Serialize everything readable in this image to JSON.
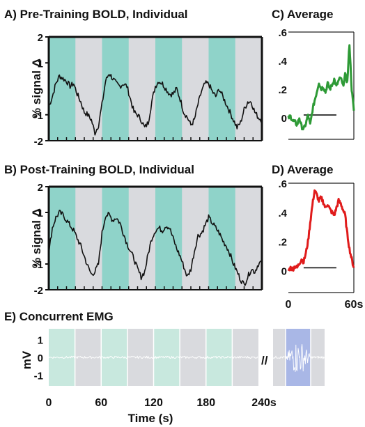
{
  "chart_data": [
    {
      "id": "A",
      "type": "line",
      "title": "A) Pre-Training BOLD, Individual",
      "ylabel": "% signal Δ",
      "ylim": [
        -2,
        2
      ],
      "yticks": [
        "2",
        "1",
        "-1",
        "-2"
      ],
      "ytick_values": [
        2,
        1,
        -1,
        -2
      ],
      "xlim": [
        0,
        240
      ],
      "grid": false,
      "block_colors": {
        "on": "#8fd3c9",
        "off": "#d9dade"
      },
      "blocks_on": [
        [
          0,
          30
        ],
        [
          60,
          90
        ],
        [
          120,
          150
        ],
        [
          180,
          210
        ]
      ],
      "line_color": "#111111",
      "series": [
        {
          "x": [
            0,
            4,
            8,
            12,
            16,
            20,
            24,
            28,
            32,
            36,
            40,
            44,
            48,
            52,
            56,
            60,
            64,
            68,
            72,
            76,
            80,
            84,
            88,
            92,
            96,
            100,
            104,
            108,
            112,
            116,
            120,
            124,
            128,
            132,
            136,
            140,
            144,
            148,
            152,
            156,
            160,
            164,
            168,
            172,
            176,
            180,
            184,
            188,
            192,
            196,
            200,
            204,
            208,
            212,
            216,
            220,
            224,
            228,
            232,
            236,
            240
          ],
          "y": [
            -0.7,
            -0.3,
            0.2,
            0.5,
            0.4,
            0.3,
            0.1,
            0.2,
            -0.2,
            -0.5,
            -0.9,
            -1.0,
            -1.2,
            -1.7,
            -1.4,
            -0.6,
            0.3,
            0.6,
            0.4,
            0.2,
            0.1,
            0.2,
            0.1,
            -0.4,
            -0.9,
            -1.0,
            -1.2,
            -1.5,
            -1.3,
            -0.5,
            0.1,
            0.3,
            0.2,
            0.0,
            -0.2,
            -0.2,
            0.0,
            -0.4,
            -0.9,
            -1.1,
            -1.4,
            -1.2,
            -0.6,
            -0.1,
            0.2,
            0.2,
            -0.1,
            -0.3,
            0.0,
            -0.3,
            -0.6,
            -0.9,
            -1.2,
            -1.5,
            -1.3,
            -0.8,
            -0.5,
            -0.5,
            -0.9,
            -1.1,
            -1.2
          ]
        }
      ]
    },
    {
      "id": "B",
      "type": "line",
      "title": "B) Post-Training BOLD, Individual",
      "ylabel": "% signal Δ",
      "ylim": [
        -2,
        2
      ],
      "yticks": [
        "2",
        "1",
        "-1",
        "-2"
      ],
      "ytick_values": [
        2,
        1,
        -1,
        -2
      ],
      "xlim": [
        0,
        240
      ],
      "grid": false,
      "block_colors": {
        "on": "#8fd3c9",
        "off": "#d9dade"
      },
      "blocks_on": [
        [
          0,
          30
        ],
        [
          60,
          90
        ],
        [
          120,
          150
        ],
        [
          180,
          210
        ]
      ],
      "line_color": "#111111",
      "series": [
        {
          "x": [
            0,
            4,
            8,
            12,
            16,
            20,
            24,
            28,
            32,
            36,
            40,
            44,
            48,
            52,
            56,
            60,
            64,
            68,
            72,
            76,
            80,
            84,
            88,
            92,
            96,
            100,
            104,
            108,
            112,
            116,
            120,
            124,
            128,
            132,
            136,
            140,
            144,
            148,
            152,
            156,
            160,
            164,
            168,
            172,
            176,
            180,
            184,
            188,
            192,
            196,
            200,
            204,
            208,
            212,
            216,
            220,
            224,
            228,
            232,
            236,
            240
          ],
          "y": [
            -0.6,
            0.4,
            0.8,
            1.0,
            0.9,
            0.7,
            0.5,
            0.3,
            0.0,
            -0.3,
            -0.7,
            -1.1,
            -1.4,
            -1.3,
            -1.0,
            0.2,
            0.9,
            0.9,
            0.7,
            0.8,
            0.6,
            0.2,
            -0.2,
            -0.5,
            -0.8,
            -1.2,
            -1.5,
            -1.3,
            -0.6,
            0.0,
            0.3,
            0.4,
            0.3,
            0.5,
            0.4,
            0.0,
            -0.4,
            -0.7,
            -1.1,
            -1.5,
            -1.2,
            -0.5,
            0.1,
            0.2,
            0.5,
            0.8,
            0.6,
            0.4,
            0.2,
            -0.1,
            -0.3,
            -0.6,
            -1.0,
            -1.3,
            -1.6,
            -1.8,
            -1.5,
            -1.2,
            -1.3,
            -1.0,
            -0.9
          ]
        }
      ]
    },
    {
      "id": "C",
      "type": "line",
      "title": "C) Average",
      "ylabel": "",
      "ylim": [
        -0.15,
        0.6
      ],
      "yticks": [
        ".6",
        ".4",
        ".2",
        "0"
      ],
      "ytick_values": [
        0.6,
        0.4,
        0.2,
        0.0
      ],
      "xlim": [
        0,
        60
      ],
      "grid": false,
      "line_color": "#2e9a36",
      "reference_line": {
        "x0": 14,
        "x1": 44,
        "y": 0.02
      },
      "series": [
        {
          "x": [
            0,
            2,
            4,
            6,
            8,
            10,
            12,
            14,
            16,
            18,
            20,
            22,
            24,
            26,
            28,
            30,
            32,
            34,
            36,
            38,
            40,
            42,
            44,
            46,
            48,
            50,
            52,
            54,
            56,
            58,
            60
          ],
          "y": [
            0.0,
            0.01,
            -0.02,
            -0.03,
            -0.05,
            0.0,
            -0.06,
            -0.08,
            -0.04,
            0.02,
            -0.05,
            0.05,
            0.12,
            0.18,
            0.25,
            0.2,
            0.22,
            0.18,
            0.24,
            0.2,
            0.23,
            0.27,
            0.22,
            0.26,
            0.28,
            0.22,
            0.3,
            0.25,
            0.52,
            0.2,
            0.05
          ]
        }
      ]
    },
    {
      "id": "D",
      "type": "line",
      "title": "D) Average",
      "ylabel": "",
      "ylim": [
        -0.15,
        0.6
      ],
      "yticks": [
        ".6",
        ".4",
        ".2",
        "0"
      ],
      "ytick_values": [
        0.6,
        0.4,
        0.2,
        0.0
      ],
      "xlim": [
        0,
        60
      ],
      "xticks": [
        "0",
        "60s"
      ],
      "xtick_values": [
        0,
        60
      ],
      "grid": false,
      "line_color": "#e01b1b",
      "reference_line": {
        "x0": 14,
        "x1": 44,
        "y": 0.02
      },
      "series": [
        {
          "x": [
            0,
            2,
            4,
            6,
            8,
            10,
            12,
            14,
            16,
            18,
            20,
            22,
            24,
            26,
            28,
            30,
            32,
            34,
            36,
            38,
            40,
            42,
            44,
            46,
            48,
            50,
            52,
            54,
            56,
            58,
            60
          ],
          "y": [
            0.0,
            0.02,
            0.01,
            0.03,
            0.02,
            0.05,
            0.08,
            0.06,
            0.12,
            0.2,
            0.33,
            0.45,
            0.55,
            0.52,
            0.48,
            0.5,
            0.47,
            0.43,
            0.46,
            0.42,
            0.4,
            0.38,
            0.43,
            0.48,
            0.46,
            0.42,
            0.38,
            0.25,
            0.15,
            0.08,
            0.02
          ]
        }
      ]
    },
    {
      "id": "E",
      "type": "line",
      "title": "E) Concurrent EMG",
      "ylabel": "mV",
      "ylim": [
        -1.6,
        1.6
      ],
      "yticks": [
        "1",
        "0",
        "-1"
      ],
      "ytick_values": [
        1,
        0,
        -1
      ],
      "xlim": [
        0,
        240
      ],
      "xticks": [
        "0",
        "60",
        "120",
        "180",
        "240s"
      ],
      "xtick_values": [
        0,
        60,
        120,
        180,
        240
      ],
      "xlabel": "Time (s)",
      "grid": false,
      "break_symbol": "//",
      "block_colors": {
        "on": "#c8e8de",
        "off": "#d9dade",
        "burst": "#a9b7e6"
      },
      "blocks_on": [
        [
          0,
          30
        ],
        [
          60,
          90
        ],
        [
          120,
          150
        ],
        [
          180,
          210
        ]
      ],
      "line_color": "#ffffff",
      "noise_amplitude": 0.06,
      "inset_burst": {
        "amplitude": 0.9
      }
    }
  ]
}
